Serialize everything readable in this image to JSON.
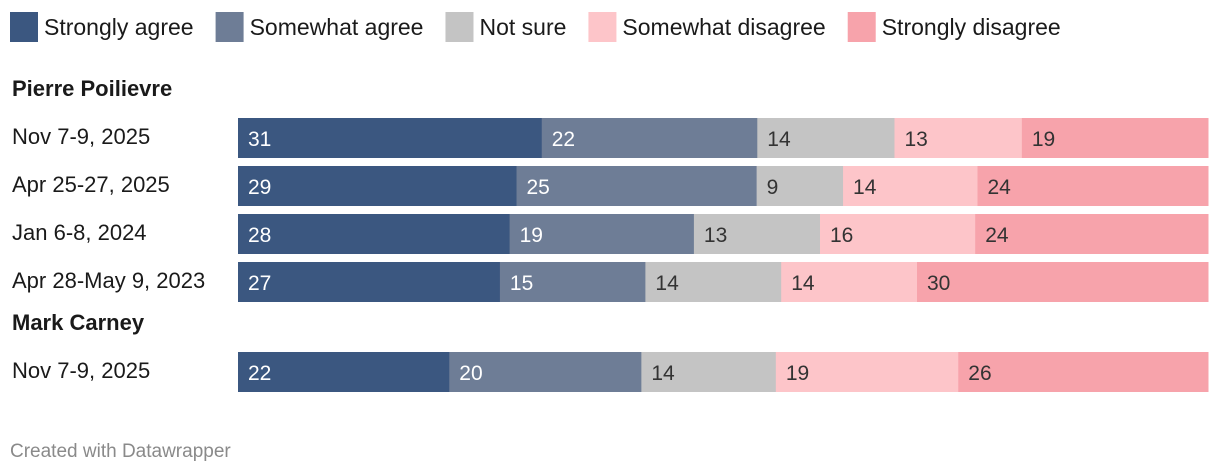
{
  "chart_data": {
    "type": "bar",
    "orientation": "horizontal",
    "stacked": true,
    "categories_legend": [
      "Strongly agree",
      "Somewhat agree",
      "Not sure",
      "Somewhat disagree",
      "Strongly disagree"
    ],
    "colors": [
      "#3b5780",
      "#6e7d96",
      "#c4c4c4",
      "#fdc5c9",
      "#f7a3ab"
    ],
    "label_colors": [
      "#ffffff",
      "#ffffff",
      "#333333",
      "#333333",
      "#333333"
    ],
    "groups": [
      {
        "title": "Pierre Poilievre",
        "rows": [
          {
            "label": "Nov 7-9, 2025",
            "values": [
              31,
              22,
              14,
              13,
              19
            ]
          },
          {
            "label": "Apr 25-27, 2025",
            "values": [
              29,
              25,
              9,
              14,
              24
            ]
          },
          {
            "label": "Jan 6-8, 2024",
            "values": [
              28,
              19,
              13,
              16,
              24
            ]
          },
          {
            "label": "Apr 28-May 9, 2023",
            "values": [
              27,
              15,
              14,
              14,
              30
            ]
          }
        ]
      },
      {
        "title": "Mark Carney",
        "rows": [
          {
            "label": "Nov 7-9, 2025",
            "values": [
              22,
              20,
              14,
              19,
              26
            ]
          }
        ]
      }
    ],
    "legend_position": "top-left",
    "grid": false
  },
  "footer": {
    "credit": "Created with Datawrapper"
  }
}
